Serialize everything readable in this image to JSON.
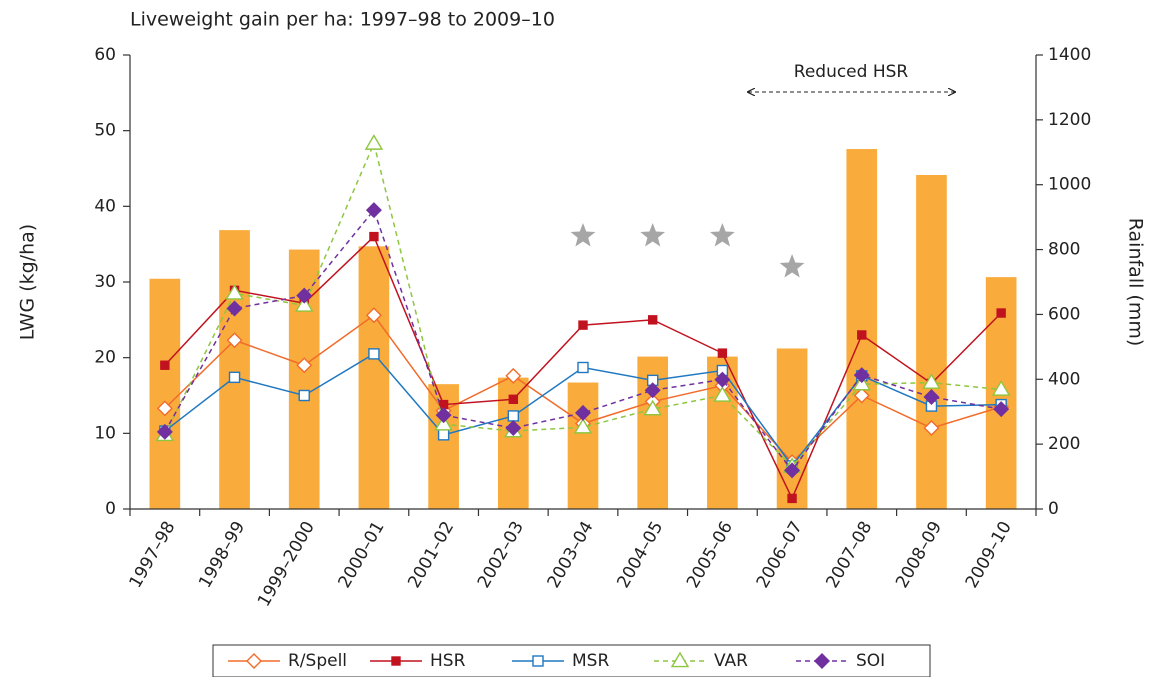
{
  "chart_data": {
    "type": "bar-line",
    "title": "Liveweight gain per ha: 1997–98 to 2009–10",
    "y_label": "LWG (kg/ha)",
    "y2_label": "Rainfall (mm)",
    "annotation": "Reduced HSR",
    "categories": [
      "1997–98",
      "1998–99",
      "1999–2000",
      "2000–01",
      "2001–02",
      "2002–03",
      "2003–04",
      "2004–05",
      "2005–06",
      "2006–07",
      "2007–08",
      "2008–09",
      "2009–10"
    ],
    "ylim": [
      0,
      60
    ],
    "yticks": [
      0,
      10,
      20,
      30,
      40,
      50,
      60
    ],
    "y2lim": [
      0,
      1400
    ],
    "y2ticks": [
      0,
      200,
      400,
      600,
      800,
      1000,
      1200,
      1400
    ],
    "series": [
      {
        "type": "bar",
        "axis": "y2",
        "color": "#f9ab3c",
        "values": [
          710,
          860,
          800,
          810,
          385,
          405,
          390,
          470,
          470,
          495,
          1110,
          1030,
          715
        ]
      },
      {
        "type": "line",
        "name": "R/Spell",
        "color": "#f26b2a",
        "marker": "diamond-open",
        "dashed": false,
        "values": [
          13.3,
          22.3,
          19,
          25.6,
          13,
          17.6,
          11.3,
          14.2,
          16.3,
          6.2,
          15,
          10.7,
          13.5
        ]
      },
      {
        "type": "line",
        "name": "HSR",
        "color": "#c1121f",
        "marker": "square-filled",
        "dashed": false,
        "values": [
          19,
          28.9,
          27.2,
          36,
          13.8,
          14.5,
          24.3,
          25,
          20.6,
          1.4,
          23,
          16.6,
          25.9
        ]
      },
      {
        "type": "line",
        "name": "MSR",
        "color": "#1f78c1",
        "marker": "square-open",
        "dashed": false,
        "values": [
          10.3,
          17.4,
          15,
          20.5,
          9.8,
          12.3,
          18.7,
          17,
          18.3,
          5.7,
          17.6,
          13.6,
          13.8
        ]
      },
      {
        "type": "line",
        "name": "VAR",
        "color": "#8dc63f",
        "marker": "triangle-open",
        "dashed": true,
        "values": [
          9.8,
          28.5,
          26.9,
          48.3,
          11.2,
          10.3,
          10.8,
          13.2,
          15,
          5.6,
          16.5,
          16.7,
          15.8
        ]
      },
      {
        "type": "line",
        "name": "SOI",
        "color": "#7030a0",
        "marker": "diamond-filled",
        "dashed": true,
        "values": [
          10.2,
          26.5,
          28.2,
          39.5,
          12.4,
          10.7,
          12.7,
          15.7,
          17.1,
          5.1,
          17.7,
          14.8,
          13.2
        ]
      }
    ]
  }
}
